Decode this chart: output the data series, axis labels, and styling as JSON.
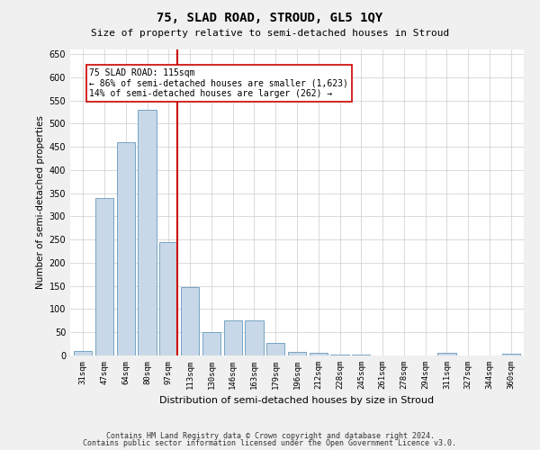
{
  "title1": "75, SLAD ROAD, STROUD, GL5 1QY",
  "title2": "Size of property relative to semi-detached houses in Stroud",
  "xlabel": "Distribution of semi-detached houses by size in Stroud",
  "ylabel": "Number of semi-detached properties",
  "categories": [
    "31sqm",
    "47sqm",
    "64sqm",
    "80sqm",
    "97sqm",
    "113sqm",
    "130sqm",
    "146sqm",
    "163sqm",
    "179sqm",
    "196sqm",
    "212sqm",
    "228sqm",
    "245sqm",
    "261sqm",
    "278sqm",
    "294sqm",
    "311sqm",
    "327sqm",
    "344sqm",
    "360sqm"
  ],
  "values": [
    10,
    340,
    460,
    530,
    245,
    148,
    50,
    75,
    75,
    28,
    8,
    6,
    2,
    2,
    0,
    0,
    0,
    5,
    0,
    0,
    3
  ],
  "bar_color": "#c8d8e8",
  "bar_edge_color": "#6699bb",
  "highlight_index": 4,
  "highlight_line_color": "#cc0000",
  "annotation_text": "75 SLAD ROAD: 115sqm\n← 86% of semi-detached houses are smaller (1,623)\n14% of semi-detached houses are larger (262) →",
  "annotation_box_color": "#ffffff",
  "annotation_box_edge": "#cc0000",
  "ylim": [
    0,
    660
  ],
  "yticks": [
    0,
    50,
    100,
    150,
    200,
    250,
    300,
    350,
    400,
    450,
    500,
    550,
    600,
    650
  ],
  "footer1": "Contains HM Land Registry data © Crown copyright and database right 2024.",
  "footer2": "Contains public sector information licensed under the Open Government Licence v3.0.",
  "bg_color": "#f0f0f0",
  "plot_bg_color": "#ffffff",
  "grid_color": "#cccccc"
}
